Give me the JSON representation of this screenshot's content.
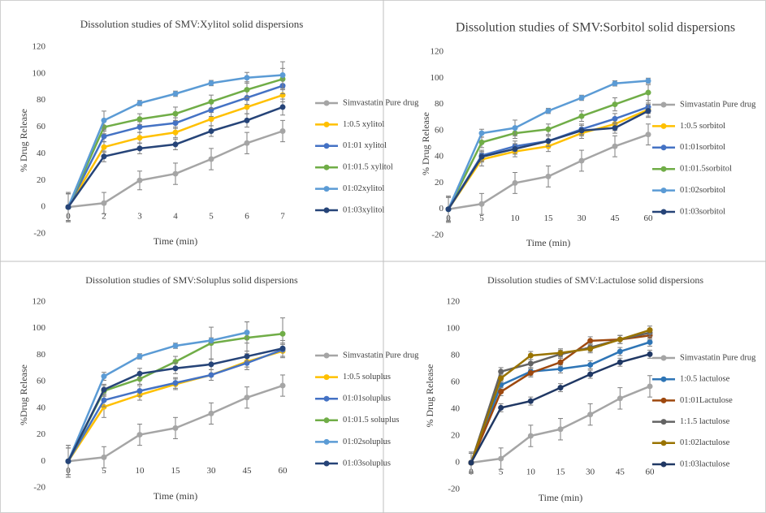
{
  "chart_data": [
    {
      "type": "line",
      "title": "Dissolution studies of SMV:Xylitol solid dispersions",
      "x_label": "Time (min)",
      "y_label": "% Drug Release",
      "categories": [
        "0",
        "2",
        "3",
        "4",
        "5",
        "6",
        "7"
      ],
      "ylim": [
        -20,
        120
      ],
      "yticks": [
        -20,
        0,
        20,
        40,
        60,
        80,
        100,
        120
      ],
      "grid": false,
      "legend": "right",
      "series": [
        {
          "name": "Simvastatin Pure drug",
          "color": "#a5a5a5",
          "values": [
            0,
            3,
            20,
            25,
            36,
            48,
            57
          ],
          "errors": [
            11,
            8,
            7,
            8,
            8,
            8,
            8
          ]
        },
        {
          "name": "1:0.5 xylitol",
          "color": "#ffc000",
          "values": [
            0,
            45,
            52,
            56,
            66,
            75,
            84
          ],
          "errors": [
            10,
            4,
            4,
            4,
            5,
            5,
            5
          ]
        },
        {
          "name": "01:01 xylitol",
          "color": "#4472c4",
          "values": [
            0,
            53,
            60,
            63,
            73,
            82,
            91
          ],
          "errors": [
            10,
            4,
            4,
            4,
            5,
            5,
            6
          ]
        },
        {
          "name": "01:01.5 xylitol",
          "color": "#70ad47",
          "values": [
            0,
            60,
            66,
            70,
            79,
            88,
            96
          ],
          "errors": [
            10,
            5,
            4,
            5,
            5,
            6,
            8
          ]
        },
        {
          "name": "01:02xylitol",
          "color": "#5b9bd5",
          "values": [
            0,
            65,
            78,
            85,
            93,
            97,
            99
          ],
          "errors": [
            11,
            7,
            2,
            2,
            2,
            4,
            10
          ]
        },
        {
          "name": "01:03xylitol",
          "color": "#264478",
          "values": [
            0,
            38,
            44,
            47,
            57,
            65,
            75
          ],
          "errors": [
            10,
            4,
            4,
            4,
            4,
            5,
            6
          ]
        }
      ]
    },
    {
      "type": "line",
      "title": "Dissolution studies of SMV:Sorbitol solid dispersions",
      "x_label": "Time (min)",
      "y_label": "% Drug Release",
      "categories": [
        "0",
        "5",
        "10",
        "15",
        "30",
        "45",
        "60"
      ],
      "ylim": [
        -20,
        120
      ],
      "yticks": [
        -20,
        0,
        20,
        40,
        60,
        80,
        100,
        120
      ],
      "grid": false,
      "legend": "right",
      "series": [
        {
          "name": "Simvastatin Pure drug",
          "color": "#a5a5a5",
          "values": [
            0,
            4,
            20,
            25,
            37,
            48,
            57
          ],
          "errors": [
            10,
            8,
            8,
            8,
            8,
            8,
            8
          ]
        },
        {
          "name": "1:0.5 sorbitol",
          "color": "#ffc000",
          "values": [
            0,
            38,
            44,
            48,
            58,
            65,
            76
          ],
          "errors": [
            9,
            5,
            4,
            4,
            4,
            5,
            5
          ]
        },
        {
          "name": "01:01sorbitol",
          "color": "#4472c4",
          "values": [
            0,
            41,
            48,
            52,
            61,
            69,
            78
          ],
          "errors": [
            9,
            4,
            4,
            4,
            4,
            4,
            5
          ]
        },
        {
          "name": "01:01.5sorbitol",
          "color": "#70ad47",
          "values": [
            0,
            51,
            58,
            61,
            71,
            80,
            89
          ],
          "errors": [
            9,
            4,
            4,
            4,
            4,
            5,
            6
          ]
        },
        {
          "name": "01:02sorbitol",
          "color": "#5b9bd5",
          "values": [
            0,
            58,
            62,
            75,
            85,
            96,
            98
          ],
          "errors": [
            10,
            3,
            6,
            2,
            2,
            2,
            2
          ]
        },
        {
          "name": "01:03sorbitol",
          "color": "#264478",
          "values": [
            0,
            40,
            46,
            52,
            60,
            62,
            75
          ],
          "errors": [
            9,
            4,
            4,
            4,
            4,
            4,
            5
          ]
        }
      ]
    },
    {
      "type": "line",
      "title": "Dissolution studies of SMV:Soluplus solid dispersions",
      "x_label": "Time (min)",
      "y_label": "%Drug  Release",
      "categories": [
        "0",
        "5",
        "10",
        "15",
        "30",
        "45",
        "60"
      ],
      "ylim": [
        -20,
        120
      ],
      "yticks": [
        -20,
        0,
        20,
        40,
        60,
        80,
        100,
        120
      ],
      "grid": false,
      "legend": "right",
      "series": [
        {
          "name": "Simvastatin Pure drug",
          "color": "#a5a5a5",
          "values": [
            0,
            3,
            20,
            25,
            36,
            48,
            57
          ],
          "errors": [
            12,
            8,
            8,
            8,
            8,
            8,
            8
          ]
        },
        {
          "name": "1:0.5 soluplus",
          "color": "#ffc000",
          "values": [
            0,
            41,
            50,
            58,
            65,
            75,
            83
          ],
          "errors": [
            10,
            8,
            4,
            4,
            4,
            4,
            5
          ]
        },
        {
          "name": "01:01soluplus",
          "color": "#4472c4",
          "values": [
            0,
            46,
            53,
            59,
            65,
            74,
            84
          ],
          "errors": [
            10,
            5,
            4,
            4,
            4,
            5,
            5
          ]
        },
        {
          "name": "01:01.5 soluplus",
          "color": "#70ad47",
          "values": [
            0,
            53,
            62,
            75,
            89,
            93,
            96
          ],
          "errors": [
            10,
            4,
            4,
            4,
            12,
            12,
            12
          ]
        },
        {
          "name": "01:02soluplus",
          "color": "#5b9bd5",
          "values": [
            0,
            64,
            79,
            87,
            91,
            97,
            null
          ],
          "errors": [
            12,
            3,
            2,
            2,
            2,
            8,
            null
          ]
        },
        {
          "name": "01:03soluplus",
          "color": "#264478",
          "values": [
            0,
            54,
            66,
            70,
            73,
            79,
            85
          ],
          "errors": [
            10,
            4,
            4,
            4,
            4,
            4,
            6
          ]
        }
      ]
    },
    {
      "type": "line",
      "title": "Dissolution studies of SMV:Lactulose solid dispersions",
      "x_label": "Time (min)",
      "y_label": "% Drug Release",
      "categories": [
        "0",
        "5",
        "10",
        "15",
        "30",
        "45",
        "60"
      ],
      "ylim": [
        -20,
        120
      ],
      "yticks": [
        -20,
        0,
        20,
        40,
        60,
        80,
        100,
        120
      ],
      "grid": false,
      "legend": "right",
      "series": [
        {
          "name": "Simvastatin Pure drug",
          "color": "#a5a5a5",
          "values": [
            0,
            3,
            20,
            25,
            36,
            48,
            57
          ],
          "errors": [
            8,
            8,
            8,
            8,
            8,
            8,
            8
          ]
        },
        {
          "name": "1:0.5 lactulose",
          "color": "#2e75b6",
          "values": [
            0,
            58,
            68,
            70,
            73,
            83,
            90
          ],
          "errors": [
            7,
            3,
            3,
            3,
            3,
            3,
            3
          ]
        },
        {
          "name": "01:01Lactulose",
          "color": "#9e480e",
          "values": [
            0,
            53,
            67,
            75,
            91,
            92,
            95
          ],
          "errors": [
            7,
            3,
            3,
            3,
            3,
            3,
            3
          ]
        },
        {
          "name": "1:1.5 lactulose",
          "color": "#636363",
          "values": [
            0,
            68,
            74,
            81,
            86,
            92,
            97
          ],
          "errors": [
            7,
            3,
            3,
            3,
            3,
            3,
            3
          ]
        },
        {
          "name": "01:02lactulose",
          "color": "#997300",
          "values": [
            0,
            63,
            80,
            82,
            85,
            92,
            99
          ],
          "errors": [
            7,
            3,
            3,
            3,
            3,
            3,
            3
          ]
        },
        {
          "name": "01:03lactulose",
          "color": "#203864",
          "values": [
            0,
            41,
            46,
            56,
            66,
            75,
            81
          ],
          "errors": [
            7,
            3,
            3,
            3,
            3,
            3,
            3
          ]
        }
      ]
    }
  ]
}
